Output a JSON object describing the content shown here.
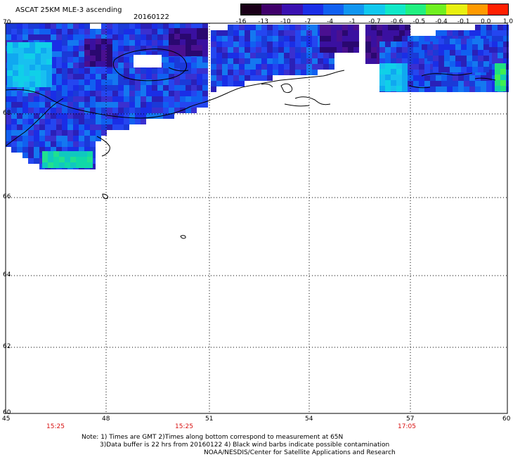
{
  "header": {
    "title": "ASCAT 25KM MLE-3 ascending",
    "date": "20160122"
  },
  "colorbar": {
    "labels": [
      "-16",
      "-13",
      "-10",
      "-7",
      "-4",
      "-1",
      "-0.7",
      "-0.6",
      "-0.5",
      "-0.4",
      "-0.1",
      "0.0",
      "1.0"
    ],
    "colors": [
      "#1a0018",
      "#40006a",
      "#3a10b0",
      "#1a2ee6",
      "#1060f0",
      "#1096f0",
      "#10c8ee",
      "#10e8c8",
      "#20f080",
      "#70f020",
      "#e8f010",
      "#ff9a00",
      "#ff2000"
    ]
  },
  "axes": {
    "lat_labels": [
      "70",
      "68",
      "66",
      "64",
      "62",
      "60"
    ],
    "lon_labels": [
      "45",
      "48",
      "51",
      "54",
      "57",
      "60"
    ],
    "times": [
      "15:25",
      "15:25",
      "17:05"
    ]
  },
  "notes": {
    "line1": "Note: 1) Times are GMT 2)Times along bottom correspond to measurement at 65N",
    "line2": "3)Data buffer is 22 hrs from 20160122 4) Black wind barbs indicate possible contamination",
    "line3": "NOAA/NESDIS/Center for Satellite Applications and Research"
  },
  "colors": {
    "time_label": "#d81010",
    "grid": "#000000"
  }
}
